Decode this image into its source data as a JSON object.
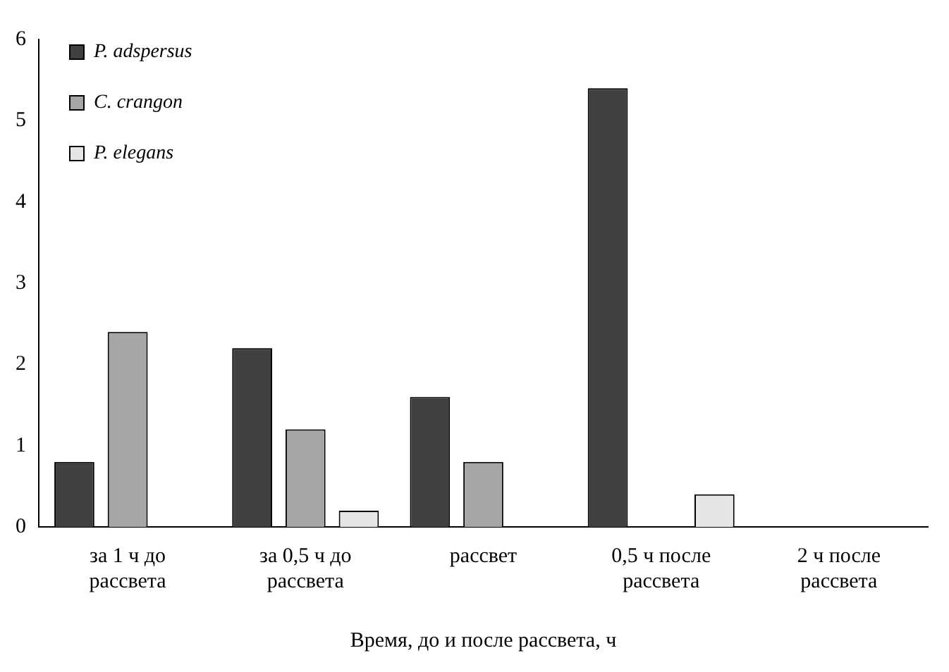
{
  "chart_data": {
    "type": "bar",
    "xlabel": "Время, до и после рассвета, ч",
    "categories": [
      "за 1 ч до рассвета",
      "за 0,5 ч до рассвета",
      "рассвет",
      "0,5 ч после рассвета",
      "2 ч после рассвета"
    ],
    "series": [
      {
        "name": "P. adspersus",
        "color": "#404040",
        "values": [
          0.8,
          2.2,
          1.6,
          5.4,
          0
        ]
      },
      {
        "name": "C. crangon",
        "color": "#a6a6a6",
        "values": [
          2.4,
          1.2,
          0.8,
          0,
          0
        ]
      },
      {
        "name": "P. elegans",
        "color": "#e6e6e6",
        "values": [
          0,
          0.2,
          0,
          0.4,
          0
        ]
      }
    ],
    "ylim": [
      0,
      6
    ],
    "yticks": [
      0,
      1,
      2,
      3,
      4,
      5,
      6
    ],
    "grid": false,
    "legend": "top left"
  }
}
